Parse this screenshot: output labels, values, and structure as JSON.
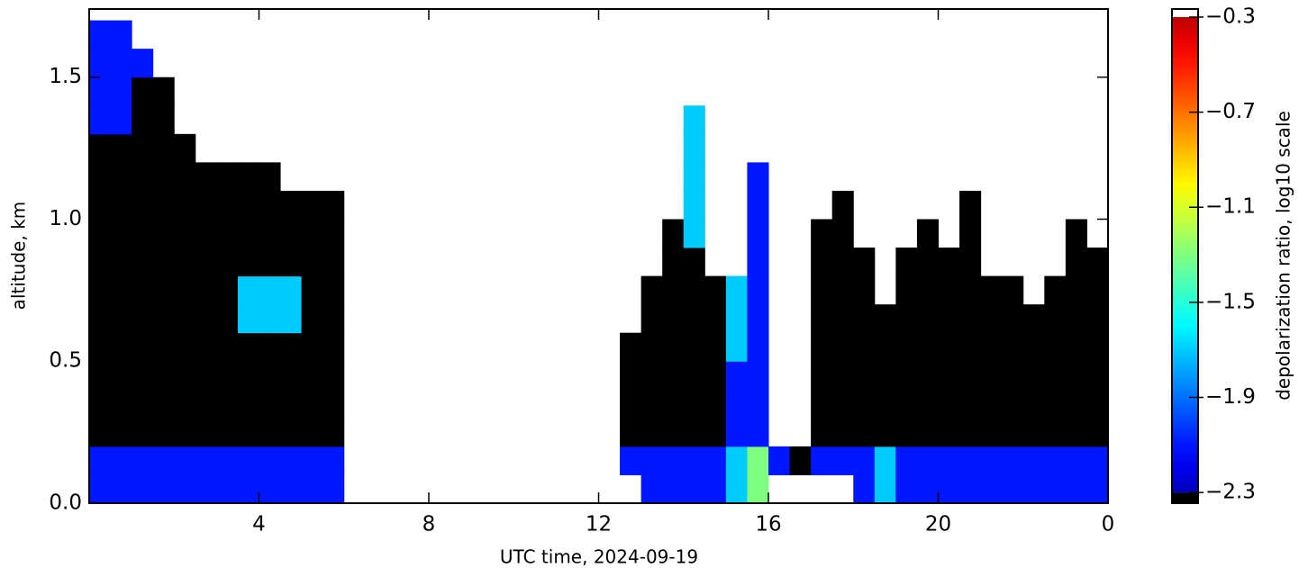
{
  "chart_data": {
    "type": "heatmap",
    "xlabel": "UTC time,  2024-09-19",
    "ylabel": "altitude, km",
    "xlim": [
      0,
      24
    ],
    "ylim": [
      0,
      1.74
    ],
    "xticks": [
      4,
      8,
      12,
      16,
      20,
      {
        "value": 24,
        "label": "0"
      }
    ],
    "yticks": [
      {
        "value": 0,
        "label": "0.0"
      },
      {
        "value": 0.5,
        "label": "0.5"
      },
      {
        "value": 1,
        "label": "1.0"
      },
      {
        "value": 1.5,
        "label": "1.5"
      }
    ],
    "x_bins": [
      0,
      0.5,
      1,
      1.5,
      2,
      2.5,
      3,
      3.5,
      4,
      4.5,
      5,
      5.5,
      6,
      6.5,
      7,
      7.5,
      8,
      8.5,
      9,
      9.5,
      10,
      10.5,
      11,
      11.5,
      12,
      12.5,
      13,
      13.5,
      14,
      14.5,
      15,
      15.5,
      16,
      16.5,
      17,
      17.5,
      18,
      18.5,
      19,
      19.5,
      20,
      20.5,
      21,
      21.5,
      22,
      22.5,
      23,
      23.5,
      24
    ],
    "y_bins": [
      0,
      0.1,
      0.2,
      0.3,
      0.4,
      0.5,
      0.6,
      0.7,
      0.8,
      0.9,
      1,
      1.1,
      1.2,
      1.3,
      1.4,
      1.5,
      1.6,
      1.7
    ],
    "z": [
      [
        -2.1,
        -2.1,
        -2.1,
        -2.1,
        -2.1,
        -2.1,
        -2.1,
        -2.1,
        -2.1,
        -2.1,
        -2.1,
        -2.1,
        null,
        null,
        null,
        null,
        null,
        null,
        null,
        null,
        null,
        null,
        null,
        null,
        null,
        null,
        -2.1,
        -2.1,
        -2.1,
        -2.1,
        -1.7,
        -1.3,
        null,
        null,
        null,
        null,
        -2.1,
        -1.7,
        -2.1,
        -2.1,
        -2.1,
        -2.1,
        -2.1,
        -2.1,
        -2.1,
        -2.1,
        -2.1,
        -2.1
      ],
      [
        -2.1,
        -2.1,
        -2.1,
        -2.1,
        -2.1,
        -2.1,
        -2.1,
        -2.1,
        -2.1,
        -2.1,
        -2.1,
        -2.1,
        null,
        null,
        null,
        null,
        null,
        null,
        null,
        null,
        null,
        null,
        null,
        null,
        null,
        -2.1,
        -2.1,
        -2.1,
        -2.1,
        -2.1,
        -1.7,
        -1.3,
        -2.1,
        -2.4,
        -2.1,
        -2.1,
        -2.1,
        -1.7,
        -2.1,
        -2.1,
        -2.1,
        -2.1,
        -2.1,
        -2.1,
        -2.1,
        -2.1,
        -2.1,
        -2.1
      ],
      [
        -2.4,
        -2.4,
        -2.4,
        -2.4,
        -2.4,
        -2.4,
        -2.4,
        -2.4,
        -2.4,
        -2.4,
        -2.4,
        -2.4,
        null,
        null,
        null,
        null,
        null,
        null,
        null,
        null,
        null,
        null,
        null,
        null,
        null,
        -2.4,
        -2.4,
        -2.4,
        -2.4,
        -2.4,
        -2.1,
        -2.1,
        null,
        null,
        -2.4,
        -2.4,
        -2.4,
        -2.4,
        -2.4,
        -2.4,
        -2.4,
        -2.4,
        -2.4,
        -2.4,
        -2.4,
        -2.4,
        -2.4,
        -2.4
      ],
      [
        -2.4,
        -2.4,
        -2.4,
        -2.4,
        -2.4,
        -2.4,
        -2.4,
        -2.4,
        -2.4,
        -2.4,
        -2.4,
        -2.4,
        null,
        null,
        null,
        null,
        null,
        null,
        null,
        null,
        null,
        null,
        null,
        null,
        null,
        -2.4,
        -2.4,
        -2.4,
        -2.4,
        -2.4,
        -2.1,
        -2.1,
        null,
        null,
        -2.4,
        -2.4,
        -2.4,
        -2.4,
        -2.4,
        -2.4,
        -2.4,
        -2.4,
        -2.4,
        -2.4,
        -2.4,
        -2.4,
        -2.4,
        -2.4
      ],
      [
        -2.4,
        -2.4,
        -2.4,
        -2.4,
        -2.4,
        -2.4,
        -2.4,
        -2.4,
        -2.4,
        -2.4,
        -2.4,
        -2.4,
        null,
        null,
        null,
        null,
        null,
        null,
        null,
        null,
        null,
        null,
        null,
        null,
        null,
        -2.4,
        -2.4,
        -2.4,
        -2.4,
        -2.4,
        -2.1,
        -2.1,
        null,
        null,
        -2.4,
        -2.4,
        -2.4,
        -2.4,
        -2.4,
        -2.4,
        -2.4,
        -2.4,
        -2.4,
        -2.4,
        -2.4,
        -2.4,
        -2.4,
        -2.4
      ],
      [
        -2.4,
        -2.4,
        -2.4,
        -2.4,
        -2.4,
        -2.4,
        -2.4,
        -2.4,
        -2.4,
        -2.4,
        -2.4,
        -2.4,
        null,
        null,
        null,
        null,
        null,
        null,
        null,
        null,
        null,
        null,
        null,
        null,
        null,
        -2.4,
        -2.4,
        -2.4,
        -2.4,
        -2.4,
        -1.7,
        -2.1,
        null,
        null,
        -2.4,
        -2.4,
        -2.4,
        -2.4,
        -2.4,
        -2.4,
        -2.4,
        -2.4,
        -2.4,
        -2.4,
        -2.4,
        -2.4,
        -2.4,
        -2.4
      ],
      [
        -2.4,
        -2.4,
        -2.4,
        -2.4,
        -2.4,
        -2.4,
        -2.4,
        -1.7,
        -1.7,
        -1.7,
        -2.4,
        -2.4,
        null,
        null,
        null,
        null,
        null,
        null,
        null,
        null,
        null,
        null,
        null,
        null,
        null,
        null,
        -2.4,
        -2.4,
        -2.4,
        -2.4,
        -1.7,
        -2.1,
        null,
        null,
        -2.4,
        -2.4,
        -2.4,
        -2.4,
        -2.4,
        -2.4,
        -2.4,
        -2.4,
        -2.4,
        -2.4,
        -2.4,
        -2.4,
        -2.4,
        -2.4
      ],
      [
        -2.4,
        -2.4,
        -2.4,
        -2.4,
        -2.4,
        -2.4,
        -2.4,
        -1.7,
        -1.7,
        -1.7,
        -2.4,
        -2.4,
        null,
        null,
        null,
        null,
        null,
        null,
        null,
        null,
        null,
        null,
        null,
        null,
        null,
        null,
        -2.4,
        -2.4,
        -2.4,
        -2.4,
        -1.7,
        -2.1,
        null,
        null,
        -2.4,
        -2.4,
        -2.4,
        null,
        -2.4,
        -2.4,
        -2.4,
        -2.4,
        -2.4,
        -2.4,
        null,
        -2.4,
        -2.4,
        -2.4
      ],
      [
        -2.4,
        -2.4,
        -2.4,
        -2.4,
        -2.4,
        -2.4,
        -2.4,
        -2.4,
        -2.4,
        -2.4,
        -2.4,
        -2.4,
        null,
        null,
        null,
        null,
        null,
        null,
        null,
        null,
        null,
        null,
        null,
        null,
        null,
        null,
        null,
        -2.4,
        -2.4,
        null,
        null,
        -2.1,
        null,
        null,
        -2.4,
        -2.4,
        -2.4,
        null,
        -2.4,
        -2.4,
        -2.4,
        -2.4,
        null,
        null,
        null,
        null,
        -2.4,
        -2.4
      ],
      [
        -2.4,
        -2.4,
        -2.4,
        -2.4,
        -2.4,
        -2.4,
        -2.4,
        -2.4,
        -2.4,
        -2.4,
        -2.4,
        -2.4,
        null,
        null,
        null,
        null,
        null,
        null,
        null,
        null,
        null,
        null,
        null,
        null,
        null,
        null,
        null,
        -2.4,
        -1.7,
        null,
        null,
        -2.1,
        null,
        null,
        -2.4,
        -2.4,
        null,
        null,
        null,
        -2.4,
        null,
        -2.4,
        null,
        null,
        null,
        null,
        -2.4,
        null
      ],
      [
        -2.4,
        -2.4,
        -2.4,
        -2.4,
        -2.4,
        -2.4,
        -2.4,
        -2.4,
        -2.4,
        -2.4,
        -2.4,
        -2.4,
        null,
        null,
        null,
        null,
        null,
        null,
        null,
        null,
        null,
        null,
        null,
        null,
        null,
        null,
        null,
        null,
        -1.7,
        null,
        null,
        -2.1,
        null,
        null,
        null,
        -2.4,
        null,
        null,
        null,
        null,
        null,
        -2.4,
        null,
        null,
        null,
        null,
        null,
        null
      ],
      [
        -2.4,
        -2.4,
        -2.4,
        -2.4,
        -2.4,
        -2.4,
        -2.4,
        -2.4,
        -2.4,
        null,
        null,
        null,
        null,
        null,
        null,
        null,
        null,
        null,
        null,
        null,
        null,
        null,
        null,
        null,
        null,
        null,
        null,
        null,
        -1.7,
        null,
        null,
        -2.1,
        null,
        null,
        null,
        null,
        null,
        null,
        null,
        null,
        null,
        null,
        null,
        null,
        null,
        null,
        null,
        null
      ],
      [
        -2.4,
        -2.4,
        -2.4,
        -2.4,
        -2.4,
        null,
        null,
        null,
        null,
        null,
        null,
        null,
        null,
        null,
        null,
        null,
        null,
        null,
        null,
        null,
        null,
        null,
        null,
        null,
        null,
        null,
        null,
        null,
        -1.7,
        null,
        null,
        null,
        null,
        null,
        null,
        null,
        null,
        null,
        null,
        null,
        null,
        null,
        null,
        null,
        null,
        null,
        null,
        null
      ],
      [
        -2.1,
        -2.1,
        -2.4,
        -2.4,
        null,
        null,
        null,
        null,
        null,
        null,
        null,
        null,
        null,
        null,
        null,
        null,
        null,
        null,
        null,
        null,
        null,
        null,
        null,
        null,
        null,
        null,
        null,
        null,
        -1.7,
        null,
        null,
        null,
        null,
        null,
        null,
        null,
        null,
        null,
        null,
        null,
        null,
        null,
        null,
        null,
        null,
        null,
        null,
        null
      ],
      [
        -2.1,
        -2.1,
        -2.4,
        -2.4,
        null,
        null,
        null,
        null,
        null,
        null,
        null,
        null,
        null,
        null,
        null,
        null,
        null,
        null,
        null,
        null,
        null,
        null,
        null,
        null,
        null,
        null,
        null,
        null,
        null,
        null,
        null,
        null,
        null,
        null,
        null,
        null,
        null,
        null,
        null,
        null,
        null,
        null,
        null,
        null,
        null,
        null,
        null,
        null
      ],
      [
        -2.1,
        -2.1,
        -2.1,
        null,
        null,
        null,
        null,
        null,
        null,
        null,
        null,
        null,
        null,
        null,
        null,
        null,
        null,
        null,
        null,
        null,
        null,
        null,
        null,
        null,
        null,
        null,
        null,
        null,
        null,
        null,
        null,
        null,
        null,
        null,
        null,
        null,
        null,
        null,
        null,
        null,
        null,
        null,
        null,
        null,
        null,
        null,
        null,
        null
      ],
      [
        -2.1,
        -2.1,
        null,
        null,
        null,
        null,
        null,
        null,
        null,
        null,
        null,
        null,
        null,
        null,
        null,
        null,
        null,
        null,
        null,
        null,
        null,
        null,
        null,
        null,
        null,
        null,
        null,
        null,
        null,
        null,
        null,
        null,
        null,
        null,
        null,
        null,
        null,
        null,
        null,
        null,
        null,
        null,
        null,
        null,
        null,
        null,
        null,
        null
      ]
    ],
    "colorbar": {
      "label": "depolarization ratio, log10 scale",
      "lim": [
        -2.345,
        -0.266
      ],
      "clim": [
        -2.3,
        -0.3
      ],
      "under": "#000000",
      "over": "#ffffff",
      "ticks": [
        {
          "value": -0.3,
          "label": "−0.3"
        },
        {
          "value": -0.7,
          "label": "−0.7"
        },
        {
          "value": -1.1,
          "label": "−1.1"
        },
        {
          "value": -1.5,
          "label": "−1.5"
        },
        {
          "value": -1.9,
          "label": "−1.9"
        },
        {
          "value": -2.3,
          "label": "−2.3"
        }
      ]
    }
  }
}
